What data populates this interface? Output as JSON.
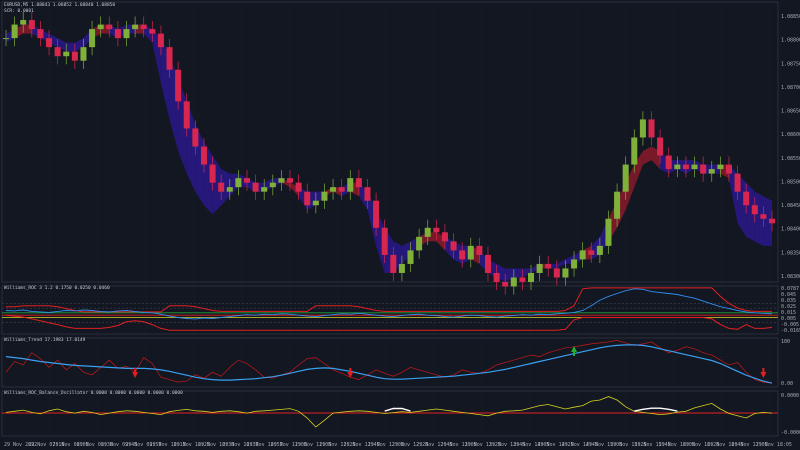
{
  "header": {
    "symbol_line": "EURUSD,M5  1.08843 1.08852 1.08840 1.08850",
    "indicator_line": "SCR: 0.0001"
  },
  "panes": {
    "roc_title": "Williams_ROC 3 1.2 0.1750 0.0250 0.0460",
    "trend_title": "Williams_Trend 17.1983 17.0149",
    "balance_title": "Williams_ROC_Balance_Oscillator 0.0000 0.0000 0.0000 0.0000 0.0000"
  },
  "colors": {
    "background": "#131722",
    "grid": "#3a3f4a",
    "bull_candle": "#7fb03a",
    "bear_candle": "#d8274e",
    "cloud_bear": "#2a188a",
    "cloud_bull": "#8a1a2a",
    "blue_line": "#2f8ff0",
    "red_line": "#e02020",
    "yellow_line": "#d8d320",
    "white_line": "#ffffff"
  },
  "chart_data": [
    {
      "type": "line",
      "title": "",
      "y_ticks": [
        "1.08850",
        "1.08800",
        "1.08750",
        "1.08700",
        "1.08650",
        "1.08600",
        "1.08550",
        "1.08500",
        "1.08450",
        "1.08400",
        "1.08350",
        "1.08300"
      ],
      "ylim": [
        1.0826,
        1.0888
      ],
      "close": [
        1.088,
        1.0883,
        1.0884,
        1.0882,
        1.088,
        1.0878,
        1.0876,
        1.0877,
        1.0875,
        1.0878,
        1.0882,
        1.0883,
        1.0882,
        1.088,
        1.0882,
        1.0883,
        1.0882,
        1.0881,
        1.0878,
        1.0873,
        1.0866,
        1.086,
        1.0856,
        1.0852,
        1.0848,
        1.0846,
        1.0847,
        1.0849,
        1.0848,
        1.0846,
        1.0847,
        1.0848,
        1.0849,
        1.0848,
        1.0846,
        1.0843,
        1.0844,
        1.0846,
        1.0847,
        1.0846,
        1.0849,
        1.0847,
        1.0844,
        1.0838,
        1.0832,
        1.0828,
        1.083,
        1.0833,
        1.0836,
        1.0838,
        1.0837,
        1.0835,
        1.0833,
        1.0831,
        1.0834,
        1.0832,
        1.0828,
        1.0826,
        1.0825,
        1.0827,
        1.0826,
        1.0828,
        1.083,
        1.0829,
        1.0827,
        1.0829,
        1.0831,
        1.0833,
        1.0832,
        1.0834,
        1.084,
        1.0846,
        1.0852,
        1.0858,
        1.0862,
        1.0858,
        1.0854,
        1.0851,
        1.0852,
        1.0851,
        1.0852,
        1.085,
        1.0851,
        1.0852,
        1.085,
        1.0846,
        1.0843,
        1.0841,
        1.084,
        1.0839
      ],
      "cloud_upper": [
        1.0881,
        1.0882,
        1.0883,
        1.0883,
        1.0882,
        1.0881,
        1.088,
        1.0879,
        1.0879,
        1.088,
        1.0882,
        1.0883,
        1.0883,
        1.0882,
        1.0883,
        1.0883,
        1.0883,
        1.0882,
        1.088,
        1.0876,
        1.0871,
        1.0866,
        1.0861,
        1.0857,
        1.0854,
        1.0851,
        1.085,
        1.085,
        1.0849,
        1.0848,
        1.0848,
        1.0849,
        1.0849,
        1.0848,
        1.0847,
        1.0846,
        1.0846,
        1.0846,
        1.0847,
        1.0847,
        1.0848,
        1.0848,
        1.0846,
        1.0842,
        1.0838,
        1.0835,
        1.0834,
        1.0835,
        1.0836,
        1.0837,
        1.0837,
        1.0836,
        1.0835,
        1.0834,
        1.0834,
        1.0833,
        1.0831,
        1.083,
        1.0829,
        1.0829,
        1.0829,
        1.0829,
        1.083,
        1.083,
        1.083,
        1.0831,
        1.0832,
        1.0833,
        1.0834,
        1.0836,
        1.084,
        1.0844,
        1.0848,
        1.0852,
        1.0855,
        1.0856,
        1.0855,
        1.0853,
        1.0853,
        1.0853,
        1.0853,
        1.0852,
        1.0852,
        1.0852,
        1.0852,
        1.085,
        1.0848,
        1.0846,
        1.0845,
        1.0844
      ],
      "cloud_lower": [
        1.0879,
        1.088,
        1.0881,
        1.0881,
        1.088,
        1.0879,
        1.0878,
        1.0877,
        1.0877,
        1.0878,
        1.088,
        1.0881,
        1.0881,
        1.088,
        1.0881,
        1.0881,
        1.0881,
        1.0879,
        1.087,
        1.0862,
        1.0855,
        1.085,
        1.0846,
        1.0843,
        1.0841,
        1.0843,
        1.0845,
        1.0847,
        1.0847,
        1.0846,
        1.0846,
        1.0847,
        1.0848,
        1.0847,
        1.0845,
        1.0842,
        1.0843,
        1.0845,
        1.0846,
        1.0845,
        1.0846,
        1.0845,
        1.0842,
        1.0834,
        1.0828,
        1.0828,
        1.083,
        1.0832,
        1.0834,
        1.0835,
        1.0835,
        1.0833,
        1.0831,
        1.083,
        1.0831,
        1.083,
        1.0828,
        1.0827,
        1.0826,
        1.0827,
        1.0827,
        1.0828,
        1.0829,
        1.0829,
        1.0829,
        1.083,
        1.083,
        1.0831,
        1.0831,
        1.0832,
        1.0835,
        1.0838,
        1.0842,
        1.0847,
        1.0852,
        1.0853,
        1.0851,
        1.085,
        1.0851,
        1.085,
        1.0851,
        1.085,
        1.085,
        1.085,
        1.0849,
        1.0839,
        1.0836,
        1.0835,
        1.0834,
        1.0834
      ]
    },
    {
      "type": "line",
      "title": "",
      "y_ticks": [
        "0.0787",
        "0.045",
        "0.035",
        "0.025",
        "0.015",
        "0.005",
        "-0.005",
        "-0.0165"
      ],
      "ylim": [
        -0.02,
        0.082
      ],
      "blue": [
        0.03,
        0.029,
        0.031,
        0.028,
        0.027,
        0.026,
        0.028,
        0.03,
        0.029,
        0.031,
        0.03,
        0.028,
        0.027,
        0.029,
        0.03,
        0.028,
        0.026,
        0.025,
        0.022,
        0.018,
        0.015,
        0.013,
        0.012,
        0.014,
        0.013,
        0.015,
        0.017,
        0.019,
        0.021,
        0.02,
        0.022,
        0.021,
        0.023,
        0.022,
        0.02,
        0.018,
        0.017,
        0.019,
        0.021,
        0.023,
        0.022,
        0.024,
        0.022,
        0.02,
        0.018,
        0.017,
        0.019,
        0.021,
        0.022,
        0.02,
        0.019,
        0.017,
        0.016,
        0.018,
        0.02,
        0.019,
        0.017,
        0.016,
        0.018,
        0.019,
        0.021,
        0.02,
        0.022,
        0.021,
        0.023,
        0.024,
        0.026,
        0.03,
        0.04,
        0.052,
        0.06,
        0.066,
        0.072,
        0.076,
        0.075,
        0.07,
        0.068,
        0.066,
        0.064,
        0.06,
        0.056,
        0.05,
        0.044,
        0.038,
        0.034,
        0.03,
        0.027,
        0.025,
        0.024,
        0.023
      ],
      "red_upper": [
        0.038,
        0.038,
        0.04,
        0.04,
        0.04,
        0.04,
        0.038,
        0.034,
        0.03,
        0.027,
        0.027,
        0.027,
        0.027,
        0.027,
        0.027,
        0.027,
        0.027,
        0.027,
        0.027,
        0.04,
        0.04,
        0.04,
        0.038,
        0.034,
        0.03,
        0.028,
        0.028,
        0.028,
        0.028,
        0.028,
        0.028,
        0.028,
        0.028,
        0.028,
        0.028,
        0.028,
        0.04,
        0.04,
        0.04,
        0.04,
        0.04,
        0.038,
        0.034,
        0.03,
        0.028,
        0.028,
        0.028,
        0.028,
        0.028,
        0.028,
        0.028,
        0.028,
        0.028,
        0.028,
        0.028,
        0.028,
        0.028,
        0.028,
        0.028,
        0.028,
        0.028,
        0.028,
        0.028,
        0.028,
        0.028,
        0.03,
        0.04,
        0.076,
        0.078,
        0.078,
        0.078,
        0.078,
        0.078,
        0.078,
        0.078,
        0.078,
        0.078,
        0.078,
        0.078,
        0.078,
        0.078,
        0.078,
        0.078,
        0.06,
        0.045,
        0.035,
        0.03,
        0.028,
        0.028,
        0.028
      ],
      "red_lower": [
        0.02,
        0.018,
        0.016,
        0.012,
        0.008,
        0.004,
        0.0,
        -0.005,
        -0.008,
        -0.008,
        -0.008,
        -0.008,
        -0.006,
        -0.002,
        0.006,
        0.008,
        0.006,
        0.0,
        -0.008,
        -0.012,
        -0.012,
        -0.012,
        -0.012,
        -0.012,
        -0.012,
        -0.012,
        -0.012,
        -0.012,
        -0.012,
        -0.012,
        -0.012,
        -0.012,
        -0.012,
        -0.012,
        -0.012,
        -0.012,
        -0.012,
        -0.012,
        -0.012,
        -0.012,
        -0.012,
        -0.012,
        -0.012,
        -0.012,
        -0.012,
        -0.012,
        -0.012,
        -0.012,
        -0.012,
        -0.012,
        -0.012,
        -0.012,
        -0.012,
        -0.012,
        -0.012,
        -0.012,
        -0.012,
        -0.012,
        -0.012,
        -0.012,
        -0.012,
        -0.012,
        -0.012,
        -0.012,
        -0.012,
        -0.01,
        0.01,
        0.015,
        0.015,
        0.015,
        0.015,
        0.015,
        0.015,
        0.015,
        0.015,
        0.015,
        0.015,
        0.015,
        0.015,
        0.015,
        0.015,
        0.015,
        0.012,
        0.0,
        -0.008,
        -0.01,
        0.0,
        -0.008,
        -0.008,
        -0.006
      ]
    },
    {
      "type": "line",
      "title": "",
      "y_ticks": [
        "100",
        "0.00"
      ],
      "ylim": [
        0,
        100
      ],
      "blue": [
        62,
        60,
        58,
        55,
        52,
        50,
        48,
        46,
        44,
        43,
        42,
        41,
        40,
        39,
        38,
        38,
        38,
        37,
        35,
        32,
        28,
        24,
        20,
        17,
        15,
        14,
        14,
        15,
        16,
        17,
        19,
        21,
        24,
        28,
        32,
        36,
        38,
        39,
        38,
        35,
        32,
        28,
        24,
        20,
        17,
        16,
        16,
        17,
        18,
        19,
        20,
        21,
        22,
        24,
        26,
        28,
        30,
        33,
        36,
        40,
        44,
        48,
        52,
        56,
        60,
        64,
        68,
        72,
        76,
        80,
        83,
        85,
        86,
        86,
        85,
        82,
        78,
        74,
        70,
        66,
        62,
        58,
        54,
        48,
        40,
        32,
        24,
        18,
        12,
        8
      ],
      "red": [
        30,
        52,
        45,
        70,
        58,
        40,
        55,
        35,
        48,
        30,
        25,
        40,
        55,
        38,
        42,
        30,
        60,
        48,
        20,
        15,
        10,
        12,
        25,
        18,
        30,
        22,
        40,
        55,
        48,
        35,
        20,
        18,
        25,
        30,
        45,
        58,
        60,
        48,
        35,
        28,
        20,
        15,
        25,
        35,
        28,
        22,
        30,
        40,
        35,
        30,
        25,
        20,
        25,
        35,
        30,
        28,
        35,
        45,
        50,
        55,
        60,
        65,
        62,
        70,
        75,
        80,
        82,
        85,
        88,
        90,
        92,
        95,
        90,
        85,
        88,
        92,
        80,
        70,
        75,
        82,
        78,
        70,
        65,
        55,
        45,
        50,
        30,
        15,
        10,
        8
      ],
      "signals": [
        {
          "index": 15,
          "direction": "down",
          "color": "#e02020"
        },
        {
          "index": 40,
          "direction": "down",
          "color": "#e02020"
        },
        {
          "index": 66,
          "direction": "up",
          "color": "#22b030"
        },
        {
          "index": 88,
          "direction": "down",
          "color": "#e02020"
        }
      ]
    },
    {
      "type": "line",
      "title": "",
      "y_ticks": [
        "0.0000",
        "-0.0000"
      ],
      "ylim": [
        -1,
        1
      ],
      "yellow": [
        0.05,
        0.1,
        0.15,
        0.05,
        -0.02,
        0.12,
        0.2,
        0.08,
        0.02,
        0.1,
        0.05,
        -0.05,
        0.02,
        0.08,
        0.12,
        0.1,
        0.05,
        0.0,
        -0.05,
        0.08,
        0.14,
        0.18,
        0.12,
        0.1,
        0.05,
        0.1,
        0.12,
        0.08,
        0.02,
        0.1,
        0.12,
        0.15,
        0.18,
        0.22,
        0.1,
        -0.2,
        -0.6,
        -0.3,
        0.02,
        0.06,
        0.1,
        0.12,
        0.1,
        0.05,
        0.0,
        0.04,
        0.08,
        0.05,
        0.1,
        0.15,
        0.2,
        0.15,
        0.1,
        0.05,
        0.0,
        -0.05,
        -0.1,
        0.02,
        0.1,
        0.12,
        0.15,
        0.25,
        0.35,
        0.4,
        0.3,
        0.2,
        0.28,
        0.35,
        0.55,
        0.6,
        0.75,
        0.6,
        0.3,
        0.1,
        0.05,
        0.0,
        -0.05,
        -0.02,
        0.06,
        0.1,
        0.25,
        0.35,
        0.45,
        0.2,
        0.0,
        -0.1,
        -0.2,
        0.0,
        0.05,
        0.02
      ],
      "white_segments": [
        [
          44,
          47
        ],
        [
          73,
          78
        ]
      ]
    }
  ],
  "time_axis": [
    "29 Nov 2022",
    "29 Nov 07:10",
    "29 Nov 08:00",
    "29 Nov 08:30",
    "29 Nov 09:45",
    "29 Nov 09:57",
    "29 Nov 10:13",
    "29 Nov 10:25",
    "29 Nov 10:30",
    "29 Nov 10:37",
    "29 Nov 10:57",
    "29 Nov 11:05",
    "29 Nov 11:05",
    "29 Nov 11:25",
    "29 Nov 11:45",
    "29 Nov 12:05",
    "29 Nov 12:25",
    "29 Nov 12:45",
    "29 Nov 13:05",
    "29 Nov 13:25",
    "29 Nov 13:45",
    "29 Nov 14:05",
    "29 Nov 14:25",
    "29 Nov 14:45",
    "29 Nov 15:05",
    "29 Nov 15:25",
    "29 Nov 15:45",
    "29 Nov 16:05",
    "29 Nov 16:25",
    "29 Nov 16:45",
    "29 Nov 17:05",
    "29 Nov 18:05"
  ]
}
